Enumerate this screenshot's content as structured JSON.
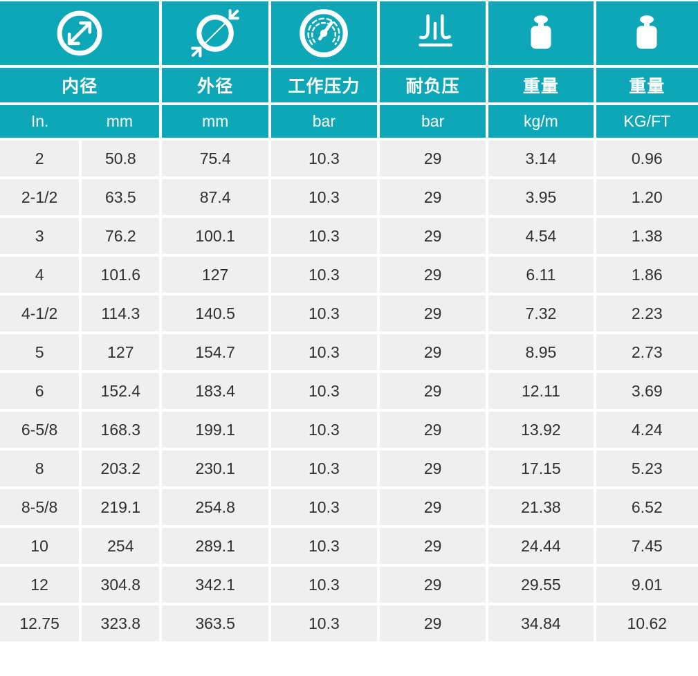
{
  "table": {
    "columns": [
      {
        "icon": "inner-diameter-icon",
        "label": "内径",
        "units": [
          "In.",
          "mm"
        ]
      },
      {
        "icon": "outer-diameter-icon",
        "label": "外径",
        "units": [
          "mm"
        ]
      },
      {
        "icon": "pressure-gauge-icon",
        "label": "工作压力",
        "units": [
          "bar"
        ]
      },
      {
        "icon": "vacuum-icon",
        "label": "耐负压",
        "units": [
          "bar"
        ]
      },
      {
        "icon": "weight-icon",
        "label": "重量",
        "units": [
          "kg/m"
        ]
      },
      {
        "icon": "weight-icon",
        "label": "重量",
        "units": [
          "KG/FT"
        ]
      }
    ],
    "rows": [
      [
        "2",
        "50.8",
        "75.4",
        "10.3",
        "29",
        "3.14",
        "0.96"
      ],
      [
        "2-1/2",
        "63.5",
        "87.4",
        "10.3",
        "29",
        "3.95",
        "1.20"
      ],
      [
        "3",
        "76.2",
        "100.1",
        "10.3",
        "29",
        "4.54",
        "1.38"
      ],
      [
        "4",
        "101.6",
        "127",
        "10.3",
        "29",
        "6.11",
        "1.86"
      ],
      [
        "4-1/2",
        "114.3",
        "140.5",
        "10.3",
        "29",
        "7.32",
        "2.23"
      ],
      [
        "5",
        "127",
        "154.7",
        "10.3",
        "29",
        "8.95",
        "2.73"
      ],
      [
        "6",
        "152.4",
        "183.4",
        "10.3",
        "29",
        "12.11",
        "3.69"
      ],
      [
        "6-5/8",
        "168.3",
        "199.1",
        "10.3",
        "29",
        "13.92",
        "4.24"
      ],
      [
        "8",
        "203.2",
        "230.1",
        "10.3",
        "29",
        "17.15",
        "5.23"
      ],
      [
        "8-5/8",
        "219.1",
        "254.8",
        "10.3",
        "29",
        "21.38",
        "6.52"
      ],
      [
        "10",
        "254",
        "289.1",
        "10.3",
        "29",
        "24.44",
        "7.45"
      ],
      [
        "12",
        "304.8",
        "342.1",
        "10.3",
        "29",
        "29.55",
        "9.01"
      ],
      [
        "12.75",
        "323.8",
        "363.5",
        "10.3",
        "29",
        "34.84",
        "10.62"
      ]
    ],
    "colors": {
      "accent": "#0da7b8",
      "cell_bg": "#efefef",
      "cell_text": "#2f2f2f"
    }
  }
}
